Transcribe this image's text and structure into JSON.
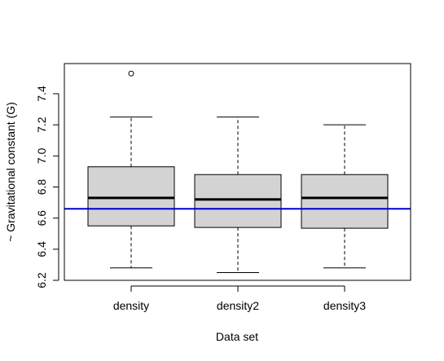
{
  "chart_data": {
    "type": "boxplot",
    "title": "",
    "xlabel": "Data set",
    "ylabel": "~ Gravitational constant (G)",
    "categories": [
      "density",
      "density2",
      "density3"
    ],
    "boxes": [
      {
        "category": "density",
        "whisker_low": 6.28,
        "q1": 6.55,
        "median": 6.73,
        "q3": 6.93,
        "whisker_high": 7.25,
        "outliers": [
          7.53
        ]
      },
      {
        "category": "density2",
        "whisker_low": 6.25,
        "q1": 6.54,
        "median": 6.72,
        "q3": 6.88,
        "whisker_high": 7.25,
        "outliers": []
      },
      {
        "category": "density3",
        "whisker_low": 6.28,
        "q1": 6.535,
        "median": 6.73,
        "q3": 6.88,
        "whisker_high": 7.2,
        "outliers": []
      }
    ],
    "yticks": [
      6.2,
      6.4,
      6.6,
      6.8,
      7.0,
      7.2,
      7.4
    ],
    "ytick_labels": [
      "6.2",
      "6.4",
      "6.6",
      "6.8",
      "7.0",
      "7.2",
      "7.4"
    ],
    "ylim": [
      6.2,
      7.55
    ],
    "reference_line": {
      "y": 6.66,
      "color": "#0000cc"
    },
    "box_fill": "#d3d3d3",
    "grid": false,
    "legend": "none"
  }
}
